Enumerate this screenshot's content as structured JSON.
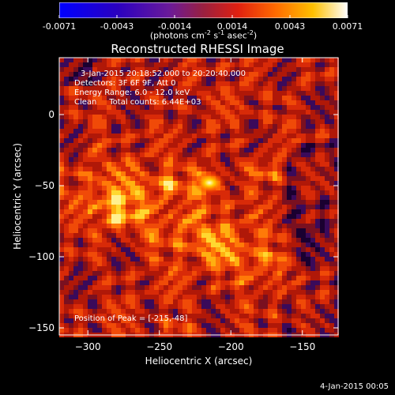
{
  "colorbar": {
    "ticks": [
      "-0.0071",
      "-0.0043",
      "-0.0014",
      "0.0014",
      "0.0043",
      "0.0071"
    ],
    "unit_prefix": "(photons cm",
    "unit_exp1": "-2",
    "unit_mid": " s",
    "unit_exp2": "-1",
    "unit_mid2": " asec",
    "unit_exp3": "-2",
    "unit_suffix": ")"
  },
  "title": "Reconstructed RHESSI Image",
  "annotations": {
    "time": "3-Jan-2015 20:18:52.000 to 20:20:40.000",
    "detectors": "Detectors: 3F 6F 9F, Att 0",
    "energy": "Energy Range: 6.0 - 12.0 keV",
    "clean": "Clean     Total counts: 6.44E+03",
    "peak": "Position of Peak = [-215,-48]"
  },
  "footer": "4-Jan-2015 00:05",
  "chart_data": {
    "type": "heatmap",
    "title": "Reconstructed RHESSI Image",
    "xlabel": "Heliocentric X (arcsec)",
    "ylabel": "Heliocentric Y (arcsec)",
    "xlim": [
      -320,
      -125
    ],
    "ylim": [
      -155,
      40
    ],
    "x_ticks": [
      -300,
      -250,
      -200,
      -150
    ],
    "y_ticks": [
      0,
      -50,
      -100,
      -150
    ],
    "colorbar_range": [
      -0.0071,
      0.0071
    ],
    "colormap": "black-blue-purple-red-orange-yellow-white",
    "peak_position": [
      -215,
      -48
    ],
    "bright_features": [
      {
        "x": -215,
        "y": -48,
        "value": 0.0071
      },
      {
        "x": -245,
        "y": -48,
        "value": 0.005
      },
      {
        "x": -280,
        "y": -70,
        "value": 0.004
      },
      {
        "x": -175,
        "y": -40,
        "value": 0.004
      },
      {
        "x": -240,
        "y": -155,
        "value": 0.003
      }
    ]
  }
}
